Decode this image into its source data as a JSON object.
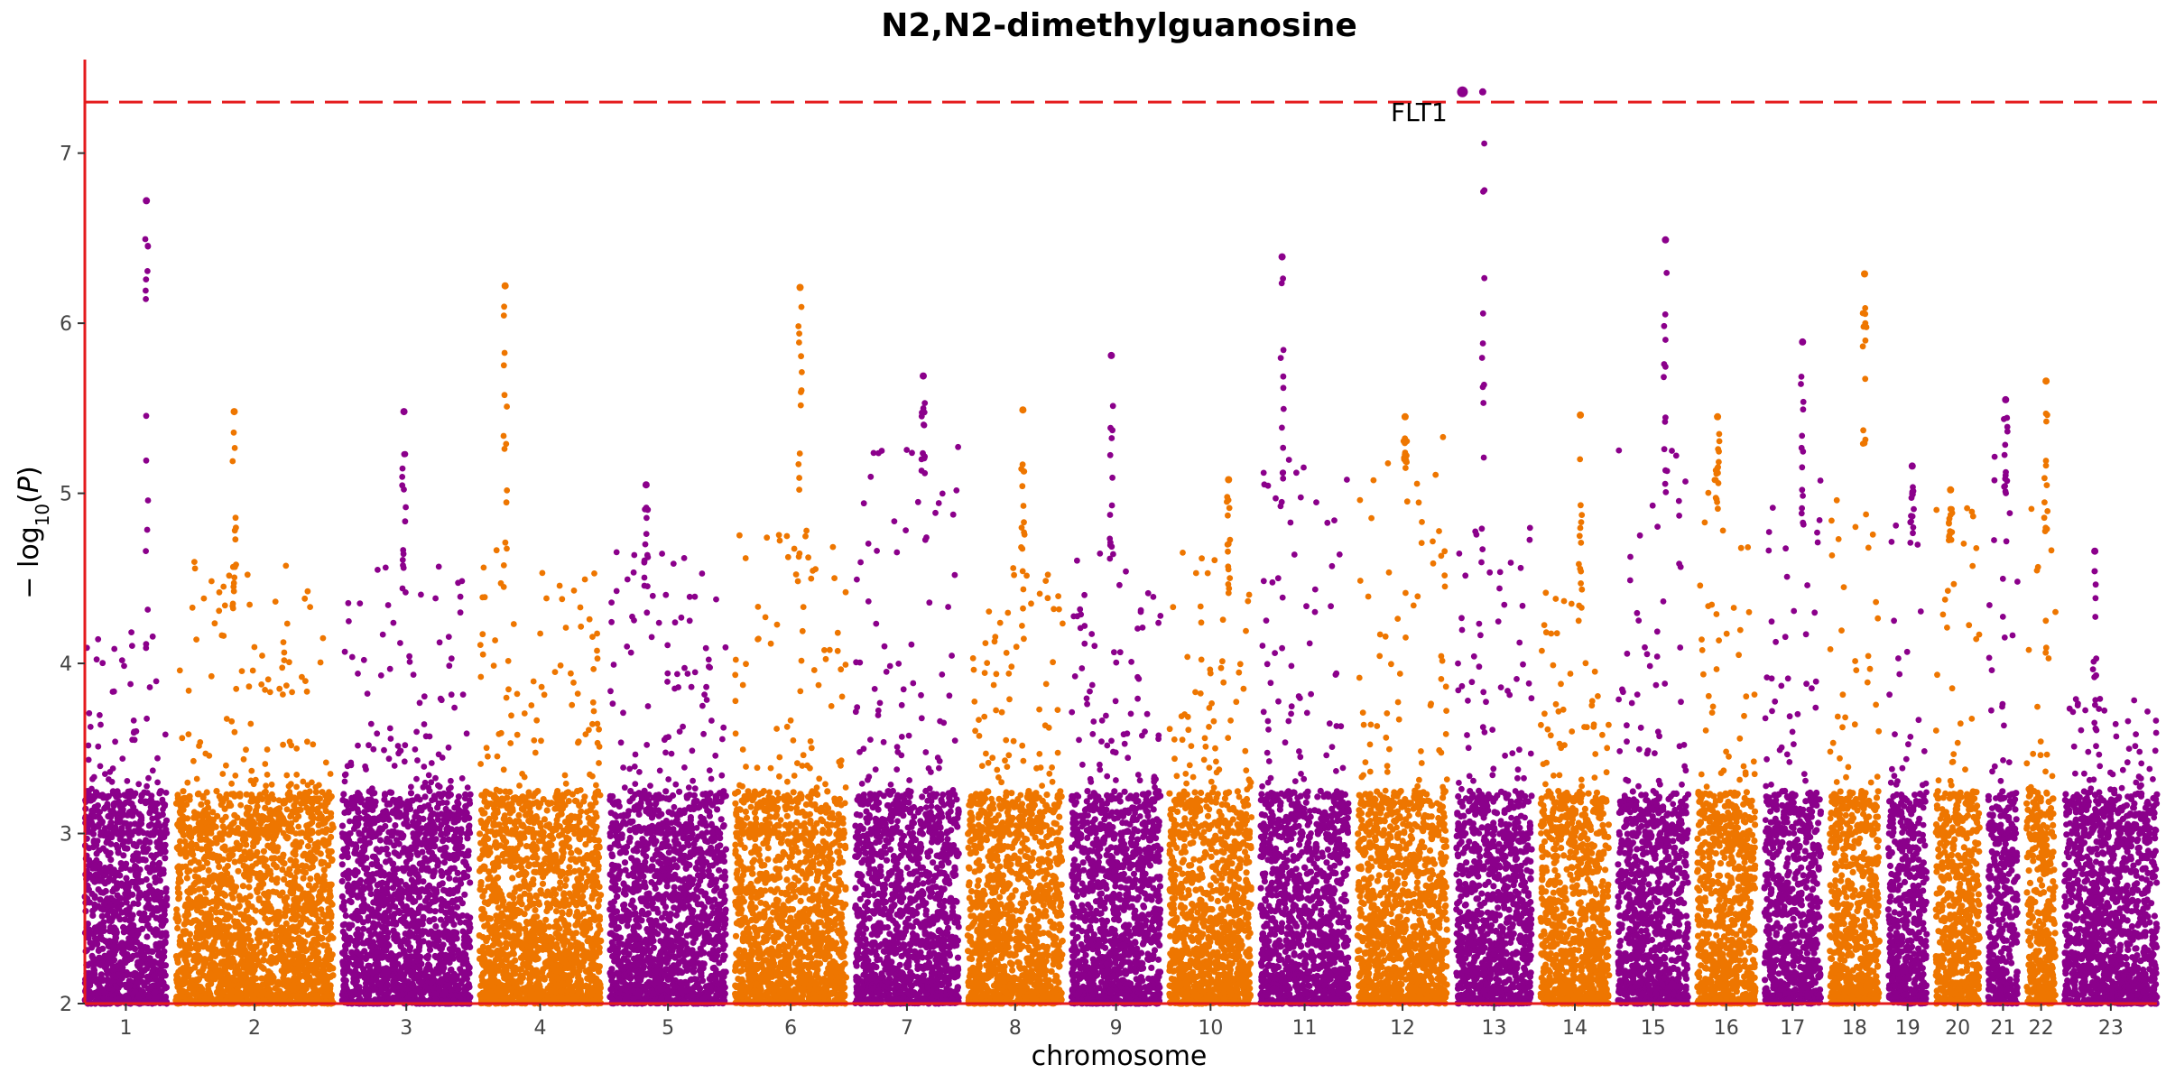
{
  "chart_data": {
    "type": "scatter",
    "subtype": "manhattan",
    "title": "N2,N2-dimethylguanosine",
    "xlabel": "chromosome",
    "ylabel": "−log10(P)",
    "ylim": [
      2,
      7.55
    ],
    "yticks": [
      2,
      3,
      4,
      5,
      6,
      7
    ],
    "grid": false,
    "legend": "none",
    "colors": {
      "odd": "#8B008B",
      "even": "#EE7600",
      "threshold": "#E41A1C",
      "axis": "#E41A1C"
    },
    "significance_threshold": 7.3,
    "chromosomes": [
      {
        "label": "1",
        "width": 9.6,
        "peak": 6.72,
        "max_bulk": 4.2
      },
      {
        "label": "2",
        "width": 18.4,
        "peak": 5.48,
        "max_bulk": 4.6
      },
      {
        "label": "3",
        "width": 15.0,
        "peak": 5.48,
        "max_bulk": 4.6
      },
      {
        "label": "4",
        "width": 14.2,
        "peak": 6.22,
        "max_bulk": 4.7
      },
      {
        "label": "5",
        "width": 13.6,
        "peak": 5.05,
        "max_bulk": 4.7
      },
      {
        "label": "6",
        "width": 13.0,
        "peak": 6.21,
        "max_bulk": 4.8
      },
      {
        "label": "7",
        "width": 12.1,
        "peak": 5.69,
        "max_bulk": 5.3
      },
      {
        "label": "8",
        "width": 11.1,
        "peak": 5.49,
        "max_bulk": 4.6
      },
      {
        "label": "9",
        "width": 10.4,
        "peak": 5.81,
        "max_bulk": 4.8
      },
      {
        "label": "10",
        "width": 9.6,
        "peak": 5.08,
        "max_bulk": 4.7
      },
      {
        "label": "11",
        "width": 10.3,
        "peak": 6.39,
        "max_bulk": 5.2
      },
      {
        "label": "12",
        "width": 10.5,
        "peak": 5.45,
        "max_bulk": 5.4
      },
      {
        "label": "13",
        "width": 8.8,
        "peak": 7.36,
        "max_bulk": 4.8
      },
      {
        "label": "14",
        "width": 8.0,
        "peak": 5.46,
        "max_bulk": 4.5
      },
      {
        "label": "15",
        "width": 8.2,
        "peak": 6.49,
        "max_bulk": 5.3
      },
      {
        "label": "16",
        "width": 6.8,
        "peak": 5.45,
        "max_bulk": 5.2
      },
      {
        "label": "17",
        "width": 6.6,
        "peak": 5.89,
        "max_bulk": 5.1
      },
      {
        "label": "18",
        "width": 5.8,
        "peak": 6.29,
        "max_bulk": 5.0
      },
      {
        "label": "19",
        "width": 4.5,
        "peak": 5.16,
        "max_bulk": 4.9
      },
      {
        "label": "20",
        "width": 5.1,
        "peak": 5.02,
        "max_bulk": 5.0
      },
      {
        "label": "21",
        "width": 3.4,
        "peak": 5.55,
        "max_bulk": 5.3
      },
      {
        "label": "22",
        "width": 3.4,
        "peak": 5.66,
        "max_bulk": 5.0
      },
      {
        "label": "23",
        "width": 10.8,
        "peak": 4.66,
        "max_bulk": 3.8
      }
    ],
    "annotations": [
      {
        "label": "FLT1",
        "chromosome": "13",
        "position": 0.08,
        "value": 7.36
      }
    ]
  }
}
